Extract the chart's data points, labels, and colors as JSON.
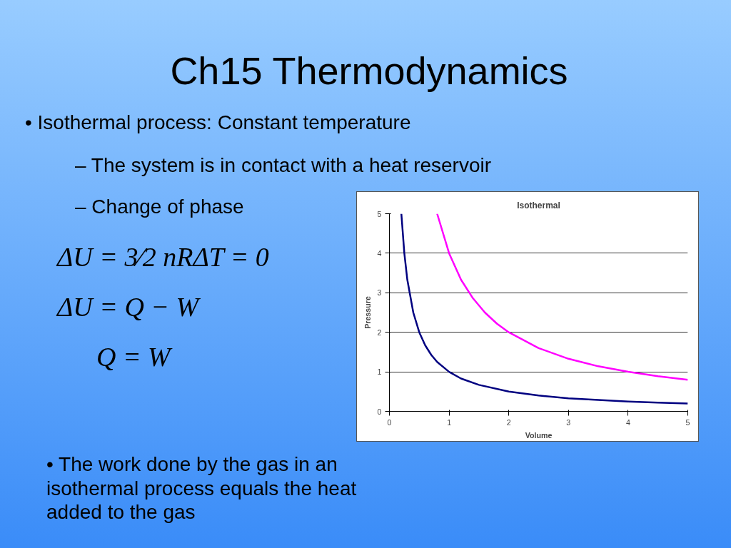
{
  "chart_data": {
    "type": "line",
    "title": "Isothermal",
    "xlabel": "Volume",
    "ylabel": "Pressure",
    "xlim": [
      0,
      5
    ],
    "ylim": [
      0,
      5
    ],
    "xticks": [
      0,
      1,
      2,
      3,
      4,
      5
    ],
    "yticks": [
      0,
      1,
      2,
      3,
      4,
      5
    ],
    "grid": "y",
    "line_style": "solid",
    "series": [
      {
        "color": "#000080",
        "x": [
          0.2,
          0.25,
          0.3,
          0.4,
          0.5,
          0.6,
          0.7,
          0.8,
          1,
          1.2,
          1.5,
          2,
          2.5,
          3,
          3.5,
          4,
          4.5,
          5
        ],
        "values": [
          5,
          4,
          3.33,
          2.5,
          2,
          1.67,
          1.43,
          1.25,
          1,
          0.83,
          0.67,
          0.5,
          0.4,
          0.33,
          0.29,
          0.25,
          0.22,
          0.2
        ]
      },
      {
        "color": "#ff00ff",
        "x": [
          0.8,
          1,
          1.2,
          1.4,
          1.6,
          1.8,
          2,
          2.5,
          3,
          3.5,
          4,
          4.5,
          5
        ],
        "values": [
          5,
          4,
          3.33,
          2.86,
          2.5,
          2.22,
          2,
          1.6,
          1.33,
          1.14,
          1,
          0.89,
          0.8
        ]
      }
    ],
    "annotations": [
      "Ch15 Thermodynamics",
      "• Isothermal process: Constant temperature",
      "– The system is in contact with a heat reservoir",
      "– Change of phase",
      "ΔU = 3⁄2 nRΔT = 0",
      "ΔU = Q − W",
      "Q = W",
      "• The work done by the gas in an isothermal process equals the heat added to the gas"
    ]
  }
}
